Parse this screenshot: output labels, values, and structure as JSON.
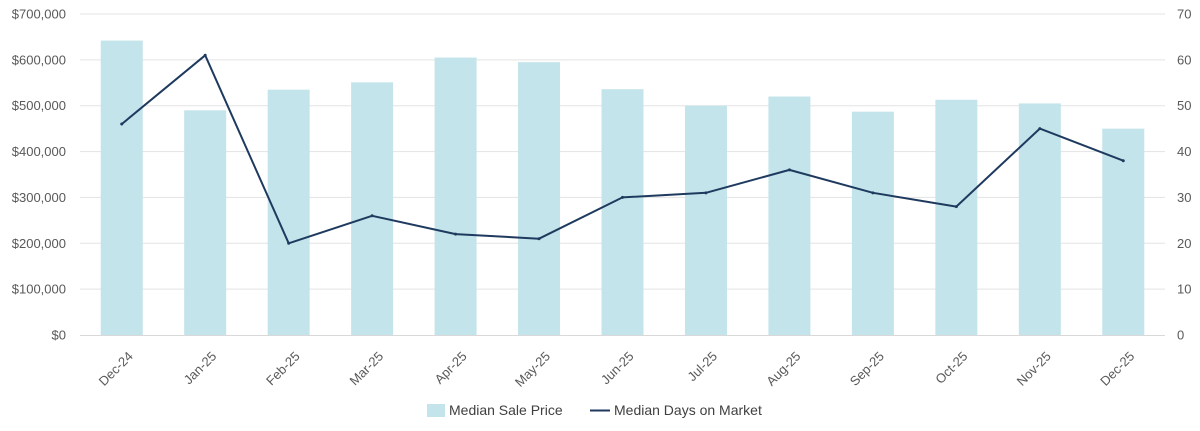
{
  "chart_data": {
    "type": "bar",
    "categories": [
      "Dec-24",
      "Jan-25",
      "Feb-25",
      "Mar-25",
      "Apr-25",
      "May-25",
      "Jun-25",
      "Jul-25",
      "Aug-25",
      "Sep-25",
      "Oct-25",
      "Nov-25",
      "Dec-25"
    ],
    "series": [
      {
        "name": "Median Sale Price",
        "type": "bar",
        "axis": "left",
        "color": "#c3e4ea",
        "values": [
          642000,
          490000,
          535000,
          551000,
          605000,
          595000,
          536000,
          500000,
          520000,
          487000,
          513000,
          505000,
          450000
        ]
      },
      {
        "name": "Median Days on Market",
        "type": "line",
        "axis": "right",
        "color": "#1f3a5f",
        "values": [
          46,
          61,
          20,
          26,
          22,
          21,
          30,
          31,
          36,
          31,
          28,
          45,
          38
        ]
      }
    ],
    "y_left": {
      "min": 0,
      "max": 700000,
      "step": 100000,
      "tick_labels": [
        "$0",
        "$100,000",
        "$200,000",
        "$300,000",
        "$400,000",
        "$500,000",
        "$600,000",
        "$700,000"
      ]
    },
    "y_right": {
      "min": 0,
      "max": 70,
      "step": 10,
      "tick_labels": [
        "0",
        "10",
        "20",
        "30",
        "40",
        "50",
        "60",
        "70"
      ]
    },
    "grid": true,
    "legend": {
      "position": "bottom-center",
      "entries": [
        "Median Sale Price",
        "Median Days on Market"
      ]
    },
    "title": "",
    "xlabel": "",
    "ylabel": ""
  }
}
